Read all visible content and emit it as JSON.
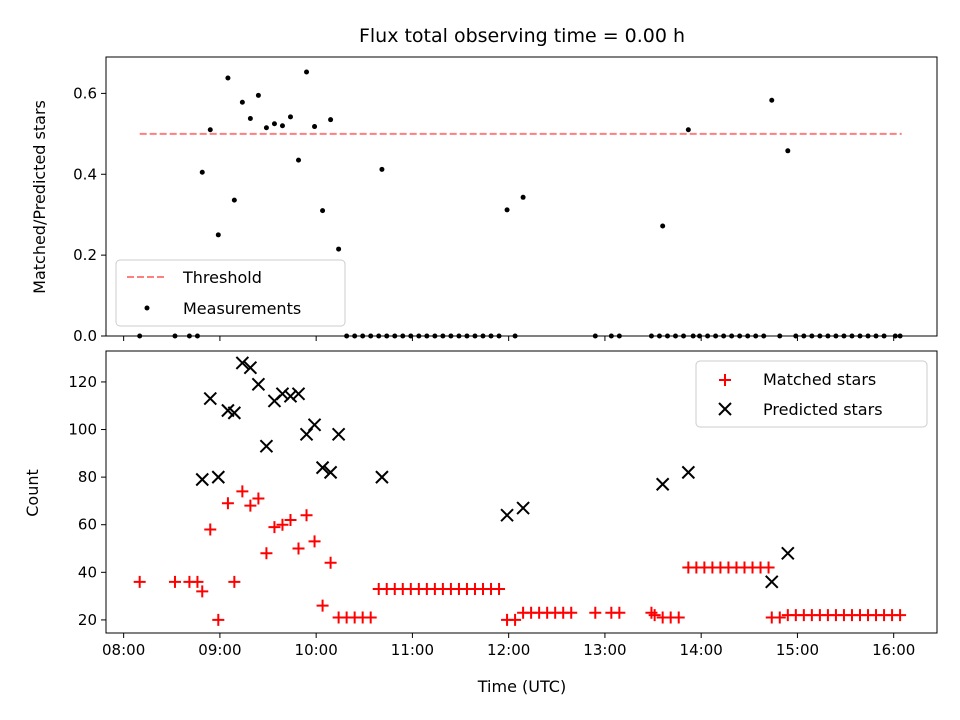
{
  "figure": {
    "title": "Flux total observing time = 0.00 h"
  },
  "chart_data": [
    {
      "type": "scatter",
      "title": "Flux total observing time = 0.00 h",
      "ylabel": "Matched/Predicted stars",
      "xlabel": "",
      "xlim": [
        "07:49",
        "16:27"
      ],
      "ylim": [
        0,
        0.69
      ],
      "x_ticks": [
        "08:00",
        "09:00",
        "10:00",
        "11:00",
        "12:00",
        "13:00",
        "14:00",
        "15:00",
        "16:00"
      ],
      "y_ticks": [
        "0.0",
        "0.2",
        "0.4",
        "0.6"
      ],
      "x_tick_labels_visible": false,
      "grid": false,
      "legend": "lower-left",
      "threshold": {
        "name": "Threshold",
        "value": 0.5,
        "x_range": [
          "08:10",
          "16:05"
        ],
        "color": "#ff7f7f",
        "style": "dashed"
      },
      "series": [
        {
          "name": "Measurements",
          "color": "#000000",
          "marker": "dot",
          "points": [
            [
              "08:10",
              0.0
            ],
            [
              "08:32",
              0.0
            ],
            [
              "08:41",
              0.0
            ],
            [
              "08:46",
              0.0
            ],
            [
              "08:49",
              0.405
            ],
            [
              "08:54",
              0.51
            ],
            [
              "08:59",
              0.25
            ],
            [
              "09:05",
              0.638
            ],
            [
              "09:09",
              0.336
            ],
            [
              "09:14",
              0.578
            ],
            [
              "09:19",
              0.538
            ],
            [
              "09:24",
              0.595
            ],
            [
              "09:29",
              0.515
            ],
            [
              "09:34",
              0.525
            ],
            [
              "09:39",
              0.52
            ],
            [
              "09:44",
              0.542
            ],
            [
              "09:49",
              0.435
            ],
            [
              "09:54",
              0.653
            ],
            [
              "09:59",
              0.518
            ],
            [
              "10:04",
              0.31
            ],
            [
              "10:09",
              0.535
            ],
            [
              "10:14",
              0.215
            ],
            [
              "10:19",
              0.0
            ],
            [
              "10:24",
              0.0
            ],
            [
              "10:29",
              0.0
            ],
            [
              "10:34",
              0.0
            ],
            [
              "10:39",
              0.0
            ],
            [
              "10:41",
              0.412
            ],
            [
              "10:44",
              0.0
            ],
            [
              "10:49",
              0.0
            ],
            [
              "10:54",
              0.0
            ],
            [
              "10:59",
              0.0
            ],
            [
              "11:04",
              0.0
            ],
            [
              "11:09",
              0.0
            ],
            [
              "11:14",
              0.0
            ],
            [
              "11:19",
              0.0
            ],
            [
              "11:24",
              0.0
            ],
            [
              "11:29",
              0.0
            ],
            [
              "11:34",
              0.0
            ],
            [
              "11:39",
              0.0
            ],
            [
              "11:44",
              0.0
            ],
            [
              "11:49",
              0.0
            ],
            [
              "11:54",
              0.0
            ],
            [
              "11:59",
              0.312
            ],
            [
              "12:04",
              0.0
            ],
            [
              "12:09",
              0.343
            ],
            [
              "12:54",
              0.0
            ],
            [
              "13:04",
              0.0
            ],
            [
              "13:09",
              0.0
            ],
            [
              "13:29",
              0.0
            ],
            [
              "13:34",
              0.0
            ],
            [
              "13:36",
              0.272
            ],
            [
              "13:39",
              0.0
            ],
            [
              "13:44",
              0.0
            ],
            [
              "13:49",
              0.0
            ],
            [
              "13:52",
              0.51
            ],
            [
              "13:55",
              0.0
            ],
            [
              "13:59",
              0.0
            ],
            [
              "14:04",
              0.0
            ],
            [
              "14:09",
              0.0
            ],
            [
              "14:14",
              0.0
            ],
            [
              "14:19",
              0.0
            ],
            [
              "14:24",
              0.0
            ],
            [
              "14:29",
              0.0
            ],
            [
              "14:34",
              0.0
            ],
            [
              "14:39",
              0.0
            ],
            [
              "14:44",
              0.583
            ],
            [
              "14:49",
              0.0
            ],
            [
              "14:54",
              0.458
            ],
            [
              "14:59",
              0.0
            ],
            [
              "15:04",
              0.0
            ],
            [
              "15:09",
              0.0
            ],
            [
              "15:14",
              0.0
            ],
            [
              "15:19",
              0.0
            ],
            [
              "15:24",
              0.0
            ],
            [
              "15:29",
              0.0
            ],
            [
              "15:34",
              0.0
            ],
            [
              "15:39",
              0.0
            ],
            [
              "15:44",
              0.0
            ],
            [
              "15:49",
              0.0
            ],
            [
              "15:54",
              0.0
            ],
            [
              "16:01",
              0.0
            ],
            [
              "16:04",
              0.0
            ]
          ]
        }
      ]
    },
    {
      "type": "scatter",
      "title": "",
      "ylabel": "Count",
      "xlabel": "Time (UTC)",
      "xlim": [
        "07:49",
        "16:27"
      ],
      "ylim": [
        14.5,
        133
      ],
      "x_ticks": [
        "08:00",
        "09:00",
        "10:00",
        "11:00",
        "12:00",
        "13:00",
        "14:00",
        "15:00",
        "16:00"
      ],
      "y_ticks": [
        "20",
        "40",
        "60",
        "80",
        "100",
        "120"
      ],
      "grid": false,
      "legend": "top-right",
      "series": [
        {
          "name": "Matched stars",
          "color": "#ff0000",
          "marker": "plus",
          "points": [
            [
              "08:10",
              36
            ],
            [
              "08:32",
              36
            ],
            [
              "08:41",
              36
            ],
            [
              "08:46",
              36
            ],
            [
              "08:49",
              32
            ],
            [
              "08:54",
              58
            ],
            [
              "08:59",
              20
            ],
            [
              "09:05",
              69
            ],
            [
              "09:09",
              36
            ],
            [
              "09:14",
              74
            ],
            [
              "09:19",
              68
            ],
            [
              "09:24",
              71
            ],
            [
              "09:29",
              48
            ],
            [
              "09:34",
              59
            ],
            [
              "09:39",
              60
            ],
            [
              "09:44",
              62
            ],
            [
              "09:49",
              50
            ],
            [
              "09:54",
              64
            ],
            [
              "09:59",
              53
            ],
            [
              "10:04",
              26
            ],
            [
              "10:09",
              44
            ],
            [
              "10:14",
              21
            ],
            [
              "10:19",
              21
            ],
            [
              "10:24",
              21
            ],
            [
              "10:29",
              21
            ],
            [
              "10:34",
              21
            ],
            [
              "10:39",
              33
            ],
            [
              "10:44",
              33
            ],
            [
              "10:49",
              33
            ],
            [
              "10:54",
              33
            ],
            [
              "10:59",
              33
            ],
            [
              "11:04",
              33
            ],
            [
              "11:09",
              33
            ],
            [
              "11:14",
              33
            ],
            [
              "11:19",
              33
            ],
            [
              "11:24",
              33
            ],
            [
              "11:29",
              33
            ],
            [
              "11:34",
              33
            ],
            [
              "11:39",
              33
            ],
            [
              "11:44",
              33
            ],
            [
              "11:49",
              33
            ],
            [
              "11:54",
              33
            ],
            [
              "11:59",
              20
            ],
            [
              "12:04",
              20
            ],
            [
              "12:09",
              23
            ],
            [
              "12:14",
              23
            ],
            [
              "12:19",
              23
            ],
            [
              "12:24",
              23
            ],
            [
              "12:29",
              23
            ],
            [
              "12:34",
              23
            ],
            [
              "12:39",
              23
            ],
            [
              "12:54",
              23
            ],
            [
              "13:04",
              23
            ],
            [
              "13:09",
              23
            ],
            [
              "13:29",
              23
            ],
            [
              "13:31",
              22
            ],
            [
              "13:36",
              21
            ],
            [
              "13:41",
              21
            ],
            [
              "13:46",
              21
            ],
            [
              "13:52",
              42
            ],
            [
              "13:57",
              42
            ],
            [
              "14:02",
              42
            ],
            [
              "14:07",
              42
            ],
            [
              "14:12",
              42
            ],
            [
              "14:17",
              42
            ],
            [
              "14:22",
              42
            ],
            [
              "14:27",
              42
            ],
            [
              "14:32",
              42
            ],
            [
              "14:37",
              42
            ],
            [
              "14:42",
              42
            ],
            [
              "14:44",
              21
            ],
            [
              "14:49",
              21
            ],
            [
              "14:54",
              22
            ],
            [
              "14:59",
              22
            ],
            [
              "15:04",
              22
            ],
            [
              "15:09",
              22
            ],
            [
              "15:14",
              22
            ],
            [
              "15:19",
              22
            ],
            [
              "15:24",
              22
            ],
            [
              "15:29",
              22
            ],
            [
              "15:34",
              22
            ],
            [
              "15:39",
              22
            ],
            [
              "15:44",
              22
            ],
            [
              "15:49",
              22
            ],
            [
              "15:54",
              22
            ],
            [
              "15:59",
              22
            ],
            [
              "16:04",
              22
            ]
          ]
        },
        {
          "name": "Predicted stars",
          "color": "#000000",
          "marker": "x",
          "points": [
            [
              "08:49",
              79
            ],
            [
              "08:54",
              113
            ],
            [
              "08:59",
              80
            ],
            [
              "09:05",
              108
            ],
            [
              "09:09",
              107
            ],
            [
              "09:14",
              128
            ],
            [
              "09:19",
              126
            ],
            [
              "09:24",
              119
            ],
            [
              "09:29",
              93
            ],
            [
              "09:34",
              112
            ],
            [
              "09:39",
              115
            ],
            [
              "09:44",
              114
            ],
            [
              "09:49",
              115
            ],
            [
              "09:54",
              98
            ],
            [
              "09:59",
              102
            ],
            [
              "10:04",
              84
            ],
            [
              "10:09",
              82
            ],
            [
              "10:14",
              98
            ],
            [
              "10:41",
              80
            ],
            [
              "11:59",
              64
            ],
            [
              "12:09",
              67
            ],
            [
              "13:36",
              77
            ],
            [
              "13:52",
              82
            ],
            [
              "14:44",
              36
            ],
            [
              "14:54",
              48
            ]
          ]
        }
      ]
    }
  ]
}
